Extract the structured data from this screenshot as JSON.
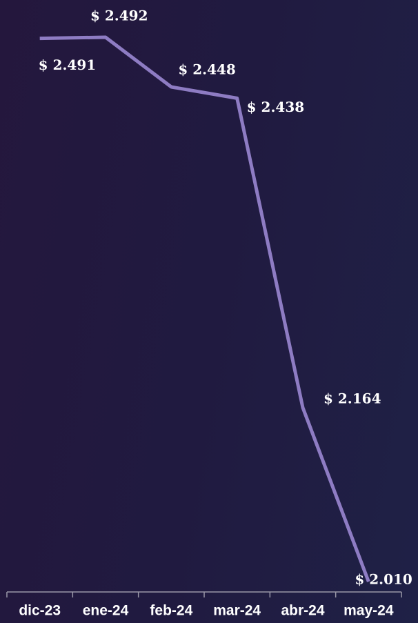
{
  "chart_data": {
    "type": "line",
    "categories": [
      "dic-23",
      "ene-24",
      "feb-24",
      "mar-24",
      "abr-24",
      "may-24"
    ],
    "series": [
      {
        "color": "#8e7cc3",
        "values": [
          2491,
          2492,
          2448,
          2438,
          2164,
          2010
        ],
        "value_labels": [
          "$ 2.491",
          "$ 2.492",
          "$ 2.448",
          "$ 2.438",
          "$ 2.164",
          "$ 2.010"
        ]
      }
    ]
  }
}
